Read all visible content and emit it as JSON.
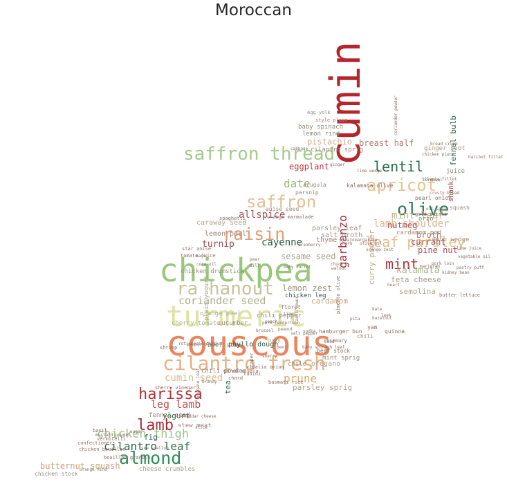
{
  "title": "Moroccan",
  "words": [
    {
      "text": "cumin",
      "size": 60,
      "color": "#b5252b",
      "rot": -90
    },
    {
      "text": "couscous",
      "size": 50,
      "color": "#e9855c"
    },
    {
      "text": "chickpea",
      "size": 46,
      "color": "#98c77a"
    },
    {
      "text": "turmeric",
      "size": 42,
      "color": "#dfe2a4"
    },
    {
      "text": "cilantro fresh",
      "size": 28,
      "color": "#e6b387"
    },
    {
      "text": "saffron thread",
      "size": 26,
      "color": "#a5c98a"
    },
    {
      "text": "ra hanout",
      "size": 26,
      "color": "#c7c49b"
    },
    {
      "text": "raisin",
      "size": 25,
      "color": "#e19d76"
    },
    {
      "text": "saffron",
      "size": 24,
      "color": "#e3bf98"
    },
    {
      "text": "apricot",
      "size": 24,
      "color": "#e8c497"
    },
    {
      "text": "olive",
      "size": 25,
      "color": "#2a8159"
    },
    {
      "text": "almond",
      "size": 25,
      "color": "#2f8d5a"
    },
    {
      "text": "harissa",
      "size": 22,
      "color": "#b0363c"
    },
    {
      "text": "lamb",
      "size": 22,
      "color": "#a72d38"
    },
    {
      "text": "mint",
      "size": 20,
      "color": "#a9323a"
    },
    {
      "text": "lentil",
      "size": 20,
      "color": "#1f6e4a"
    },
    {
      "text": "leaf parsley",
      "size": 20,
      "color": "#e2c091"
    },
    {
      "text": "garbanzo",
      "size": 16,
      "color": "#a52d36",
      "rot": -90
    },
    {
      "text": "chicken thigh",
      "size": 17,
      "color": "#9ec58a"
    },
    {
      "text": "cilantro leaf",
      "size": 16,
      "color": "#2d6b4a"
    },
    {
      "text": "prune",
      "size": 16,
      "color": "#d9ae6f"
    },
    {
      "text": "date",
      "size": 16,
      "color": "#a2b77d"
    },
    {
      "text": "coriander seed",
      "size": 15,
      "color": "#a8b18a"
    },
    {
      "text": "leg lamb",
      "size": 15,
      "color": "#c14a4c"
    },
    {
      "text": "cumin seed",
      "size": 14,
      "color": "#e3b78b"
    },
    {
      "text": "allspice",
      "size": 14,
      "color": "#a54f55"
    },
    {
      "text": "cayenne",
      "size": 14,
      "color": "#2a5a44"
    },
    {
      "text": "lamb shoulder",
      "size": 14,
      "color": "#d7b795"
    },
    {
      "text": "mint leaf",
      "size": 14,
      "color": "#c9ab8a"
    },
    {
      "text": "kalamata",
      "size": 13,
      "color": "#a8b58c"
    },
    {
      "text": "turnip",
      "size": 13,
      "color": "#9e4a4f"
    },
    {
      "text": "butternut squash",
      "size": 12,
      "color": "#c7a27a"
    },
    {
      "text": "eggplant",
      "size": 12,
      "color": "#b8363e"
    },
    {
      "text": "breast half",
      "size": 12,
      "color": "#b08270"
    },
    {
      "text": "pistachio",
      "size": 12,
      "color": "#c7b08e"
    },
    {
      "text": "nutmeg",
      "size": 12,
      "color": "#a55055"
    },
    {
      "text": "currant",
      "size": 12,
      "color": "#a9575a"
    },
    {
      "text": "pine nut",
      "size": 12,
      "color": "#9e5055"
    },
    {
      "text": "broth",
      "size": 12,
      "color": "#a9837b"
    },
    {
      "text": "sesame seed",
      "size": 12,
      "color": "#a9a28d"
    },
    {
      "text": "lemon zest",
      "size": 12,
      "color": "#a5937d"
    },
    {
      "text": "cardamom",
      "size": 11,
      "color": "#c9a37e"
    },
    {
      "text": "feta cheese",
      "size": 11,
      "color": "#a89e88"
    },
    {
      "text": "semolina",
      "size": 11,
      "color": "#b4a68c"
    },
    {
      "text": "curry powder",
      "size": 11,
      "color": "#c99e73",
      "rot": -90
    },
    {
      "text": "fennel bulb",
      "size": 11,
      "color": "#2e6a4d",
      "rot": -90
    },
    {
      "text": "tea",
      "size": 11,
      "color": "#2e6a4d",
      "rot": -90
    },
    {
      "text": "shank",
      "size": 10,
      "color": "#a5484e",
      "rot": -90
    },
    {
      "text": "yogurt",
      "size": 11,
      "color": "#2f5e47"
    },
    {
      "text": "fig",
      "size": 11,
      "color": "#2f5e47"
    },
    {
      "text": "parsley sprig",
      "size": 11,
      "color": "#b4a18c"
    },
    {
      "text": "caraway seed",
      "size": 10,
      "color": "#b2a48f"
    },
    {
      "text": "lemon peel",
      "size": 10,
      "color": "#9d8a78"
    },
    {
      "text": "parsley leaf",
      "size": 10,
      "color": "#a89687"
    },
    {
      "text": "salt broth",
      "size": 10,
      "color": "#a79887"
    },
    {
      "text": "thyme",
      "size": 10,
      "color": "#a07e6e"
    },
    {
      "text": "cardamom pod",
      "size": 9,
      "color": "#a88a75"
    },
    {
      "text": "lemon wedge",
      "size": 9,
      "color": "#a89480"
    },
    {
      "text": "orzo",
      "size": 9,
      "color": "#7f8c6e"
    },
    {
      "text": "juice",
      "size": 9,
      "color": "#8e8b79"
    },
    {
      "text": "ginger root",
      "size": 9,
      "color": "#a7937f"
    },
    {
      "text": "cilantro sprig",
      "size": 9,
      "color": "#9b8a78"
    },
    {
      "text": "lemon rind",
      "size": 9,
      "color": "#8a8b7b"
    },
    {
      "text": "baby spinach",
      "size": 9,
      "color": "#8a8b7b"
    },
    {
      "text": "style plain",
      "size": 7,
      "color": "#b07e70"
    },
    {
      "text": "egg yolk",
      "size": 7,
      "color": "#8a8b7b"
    },
    {
      "text": "parsnip",
      "size": 8,
      "color": "#9b8a78"
    },
    {
      "text": "arugula",
      "size": 8,
      "color": "#9b8a78"
    },
    {
      "text": "pearl onion",
      "size": 8,
      "color": "#8a6d63"
    },
    {
      "text": "kalamata olive",
      "size": 8,
      "color": "#8a6d63"
    },
    {
      "text": "anise seed",
      "size": 8,
      "color": "#9b8a78"
    },
    {
      "text": "orange marmalade",
      "size": 7,
      "color": "#8a6d63"
    },
    {
      "text": "spaghetti",
      "size": 7,
      "color": "#8a6d63"
    },
    {
      "text": "squash",
      "size": 8,
      "color": "#9b8a78"
    },
    {
      "text": "gold potato",
      "size": 7,
      "color": "#8a6d63"
    },
    {
      "text": "chicken drumstick",
      "size": 9,
      "color": "#9b8a78"
    },
    {
      "text": "star anise",
      "size": 7,
      "color": "#8a6d63"
    },
    {
      "text": "tomato juice",
      "size": 7,
      "color": "#8a6d63"
    },
    {
      "text": "cherry tomato",
      "size": 9,
      "color": "#a8b18a"
    },
    {
      "text": "cucumber",
      "size": 9,
      "color": "#9b8a78"
    },
    {
      "text": "chili pepper",
      "size": 9,
      "color": "#9b8a78"
    },
    {
      "text": "chicken leg",
      "size": 9,
      "color": "#2f5e47"
    },
    {
      "text": "floret",
      "size": 8,
      "color": "#8a6d63"
    },
    {
      "text": "chili",
      "size": 8,
      "color": "#9b8a78"
    },
    {
      "text": "yam",
      "size": 8,
      "color": "#8a6d63"
    },
    {
      "text": "butter lettuce",
      "size": 7,
      "color": "#8a6d63"
    },
    {
      "text": "hamburger bun",
      "size": 8,
      "color": "#8a6d63"
    },
    {
      "text": "quinoa",
      "size": 8,
      "color": "#8a6d63"
    },
    {
      "text": "beef stock",
      "size": 8,
      "color": "#8a6d63"
    },
    {
      "text": "mint sprig",
      "size": 9,
      "color": "#9b8a78"
    },
    {
      "text": "chile",
      "size": 9,
      "color": "#9b8a78"
    },
    {
      "text": "oregano",
      "size": 10,
      "color": "#a8a18a"
    },
    {
      "text": "beef stew",
      "size": 9,
      "color": "#9b8a78"
    },
    {
      "text": "phyllo dough",
      "size": 10,
      "color": "#3b5a48"
    },
    {
      "text": "orange peel",
      "size": 9,
      "color": "#a8b18a"
    },
    {
      "text": "plain yogurt",
      "size": 9,
      "color": "#a8a18a",
      "rot": -90
    },
    {
      "text": "shrimp",
      "size": 7,
      "color": "#8a6d63"
    },
    {
      "text": "chili powder",
      "size": 9,
      "color": "#9b8a78"
    },
    {
      "text": "sherry vinegar",
      "size": 7,
      "color": "#8a6d63"
    },
    {
      "text": "fennel seed",
      "size": 9,
      "color": "#9b8a78"
    },
    {
      "text": "stew meat",
      "size": 9,
      "color": "#9b8a78"
    },
    {
      "text": "basil",
      "size": 7,
      "color": "#8a6d63"
    },
    {
      "text": "mustard powder",
      "size": 6,
      "color": "#8a6d63"
    },
    {
      "text": "vermicelli",
      "size": 7,
      "color": "#8a6d63"
    },
    {
      "text": "confectioner",
      "size": 7,
      "color": "#8a6d63"
    },
    {
      "text": "chicken bouillon",
      "size": 7,
      "color": "#8a6d63"
    },
    {
      "text": "bouillon granule",
      "size": 7,
      "color": "#8a6d63"
    },
    {
      "text": "chicken stock",
      "size": 8,
      "color": "#9b8a78"
    },
    {
      "text": "cheese crumbles",
      "size": 9,
      "color": "#a8a18a"
    },
    {
      "text": "tahini",
      "size": 7,
      "color": "#8a6d63"
    },
    {
      "text": "basmati rice",
      "size": 7,
      "color": "#8a6d63"
    },
    {
      "text": "pimento olive",
      "size": 7,
      "color": "#8a6d63",
      "rot": -90
    },
    {
      "text": "rosemary",
      "size": 7,
      "color": "#8a6d63"
    },
    {
      "text": "caper",
      "size": 7,
      "color": "#8a6d63",
      "rot": -90
    },
    {
      "text": "vidalia onion",
      "size": 7,
      "color": "#8a6d63"
    },
    {
      "text": "garam masala",
      "size": 7,
      "color": "#8a6d63"
    },
    {
      "text": "chard",
      "size": 7,
      "color": "#8a6d63"
    },
    {
      "text": "brandy",
      "size": 6,
      "color": "#8a6d63"
    },
    {
      "text": "oregano leaf",
      "size": 6,
      "color": "#8a6d63",
      "rot": -90
    },
    {
      "text": "cabbage",
      "size": 6,
      "color": "#8a6d63"
    },
    {
      "text": "lime wedge",
      "size": 6,
      "color": "#8a6d63"
    },
    {
      "text": "cornmeal",
      "size": 6,
      "color": "#8a6d63"
    },
    {
      "text": "chicken piece",
      "size": 6,
      "color": "#8a6d63"
    },
    {
      "text": "kidney bean",
      "size": 6,
      "color": "#8a6d63"
    },
    {
      "text": "lime juice",
      "size": 6,
      "color": "#8a6d63"
    },
    {
      "text": "vegetable oil",
      "size": 6,
      "color": "#8a6d63"
    },
    {
      "text": "pastry puff",
      "size": 6,
      "color": "#8a6d63"
    },
    {
      "text": "pork loin",
      "size": 6,
      "color": "#8a6d63"
    },
    {
      "text": "marjoram",
      "size": 6,
      "color": "#8a6d63"
    },
    {
      "text": "heart",
      "size": 6,
      "color": "#8a6d63"
    },
    {
      "text": "leek",
      "size": 6,
      "color": "#8a6d63"
    },
    {
      "text": "pita",
      "size": 6,
      "color": "#8a6d63"
    },
    {
      "text": "kale",
      "size": 6,
      "color": "#8a6d63"
    },
    {
      "text": "hazelnut",
      "size": 6,
      "color": "#8a6d63"
    },
    {
      "text": "walnut",
      "size": 6,
      "color": "#8a6d63"
    },
    {
      "text": "baby carrot",
      "size": 6,
      "color": "#8a6d63"
    },
    {
      "text": "cranberry",
      "size": 6,
      "color": "#8a6d63"
    },
    {
      "text": "pear",
      "size": 6,
      "color": "#8a6d63"
    },
    {
      "text": "dill",
      "size": 6,
      "color": "#8a6d63"
    },
    {
      "text": "mace",
      "size": 6,
      "color": "#8a6d63"
    },
    {
      "text": "core oil",
      "size": 6,
      "color": "#8a6d63"
    },
    {
      "text": "coriander powder",
      "size": 6,
      "color": "#8a6d63",
      "rot": -90
    },
    {
      "text": "bread crumb",
      "size": 6,
      "color": "#8a6d63"
    },
    {
      "text": "halibut fillet",
      "size": 6,
      "color": "#8a6d63"
    },
    {
      "text": "tilapia fillet",
      "size": 6,
      "color": "#8a6d63"
    },
    {
      "text": "crusty bread",
      "size": 6,
      "color": "#8a6d63"
    },
    {
      "text": "oil spray",
      "size": 6,
      "color": "#8a6d63"
    },
    {
      "text": "chuck",
      "size": 6,
      "color": "#8a6d63"
    },
    {
      "text": "potato",
      "size": 6,
      "color": "#8a6d63"
    },
    {
      "text": "cauliflower",
      "size": 6,
      "color": "#8a6d63",
      "rot": -90
    },
    {
      "text": "margarine",
      "size": 6,
      "color": "#8a6d63"
    },
    {
      "text": "ginger",
      "size": 6,
      "color": "#8a6d63"
    },
    {
      "text": "herb",
      "size": 6,
      "color": "#8a6d63"
    },
    {
      "text": "vodka",
      "size": 6,
      "color": "#8a6d63"
    },
    {
      "text": "lime",
      "size": 6,
      "color": "#8a6d63"
    },
    {
      "text": "salt pepper",
      "size": 6,
      "color": "#8a6d63"
    },
    {
      "text": "baby spinach leaf",
      "size": 6,
      "color": "#8a6d63"
    },
    {
      "text": "rotisserie chicken",
      "size": 6,
      "color": "#8a6d63"
    },
    {
      "text": "pepper black",
      "size": 6,
      "color": "#8a6d63"
    },
    {
      "text": "cheddar cheese",
      "size": 6,
      "color": "#8a6d63"
    },
    {
      "text": "slice",
      "size": 6,
      "color": "#8a6d63"
    },
    {
      "text": "sugar",
      "size": 6,
      "color": "#8a6d63"
    },
    {
      "text": "orange rind",
      "size": 6,
      "color": "#8a6d63"
    },
    {
      "text": "sea scallop",
      "size": 6,
      "color": "#8a6d63"
    },
    {
      "text": "peanut",
      "size": 6,
      "color": "#8a6d63"
    },
    {
      "text": "seed",
      "size": 6,
      "color": "#8a6d63"
    },
    {
      "text": "sherry",
      "size": 6,
      "color": "#8a6d63"
    },
    {
      "text": "peach",
      "size": 6,
      "color": "#8a6d63"
    },
    {
      "text": "olive oil",
      "size": 6,
      "color": "#8a6d63"
    },
    {
      "text": "orange zest",
      "size": 6,
      "color": "#8a6d63"
    },
    {
      "text": "curry",
      "size": 6,
      "color": "#8a6d63"
    },
    {
      "text": "pork tenderloin",
      "size": 6,
      "color": "#8a6d63"
    },
    {
      "text": "brussel",
      "size": 6,
      "color": "#8a6d63"
    },
    {
      "text": "beef",
      "size": 6,
      "color": "#8a6d63"
    }
  ]
}
